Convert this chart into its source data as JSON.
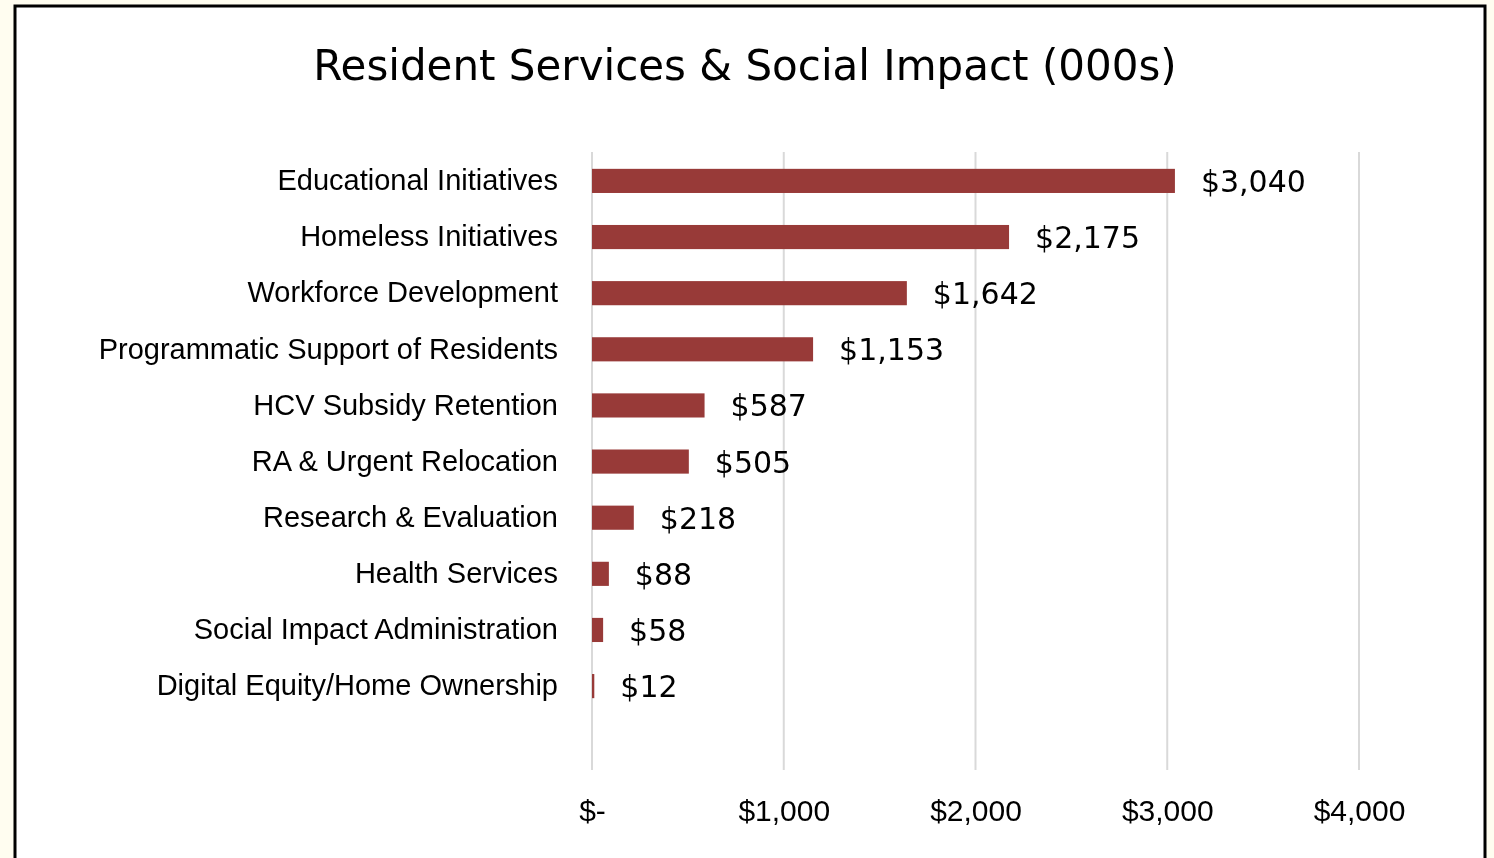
{
  "chart_data": {
    "type": "bar",
    "orientation": "horizontal",
    "title": "Resident Services & Social Impact (000s)",
    "categories": [
      "Educational Initiatives",
      "Homeless Initiatives",
      "Workforce Development",
      "Programmatic Support of Residents",
      "HCV Subsidy Retention",
      "RA & Urgent Relocation",
      "Research & Evaluation",
      "Health Services",
      "Social Impact Administration",
      "Digital Equity/Home Ownership"
    ],
    "values": [
      3040,
      2175,
      1642,
      1153,
      587,
      505,
      218,
      88,
      58,
      12
    ],
    "value_labels": [
      "$3,040",
      "$2,175",
      "$1,642",
      "$1,153",
      "$587",
      "$505",
      "$218",
      "$88",
      "$58",
      "$12"
    ],
    "color": "#983a38",
    "xlim": [
      0,
      4000
    ],
    "xticks": [
      {
        "value": 0,
        "label": "$-"
      },
      {
        "value": 1000,
        "label": "$1,000"
      },
      {
        "value": 2000,
        "label": "$2,000"
      },
      {
        "value": 3000,
        "label": "$3,000"
      },
      {
        "value": 4000,
        "label": "$4,000"
      }
    ],
    "grid": "x"
  }
}
